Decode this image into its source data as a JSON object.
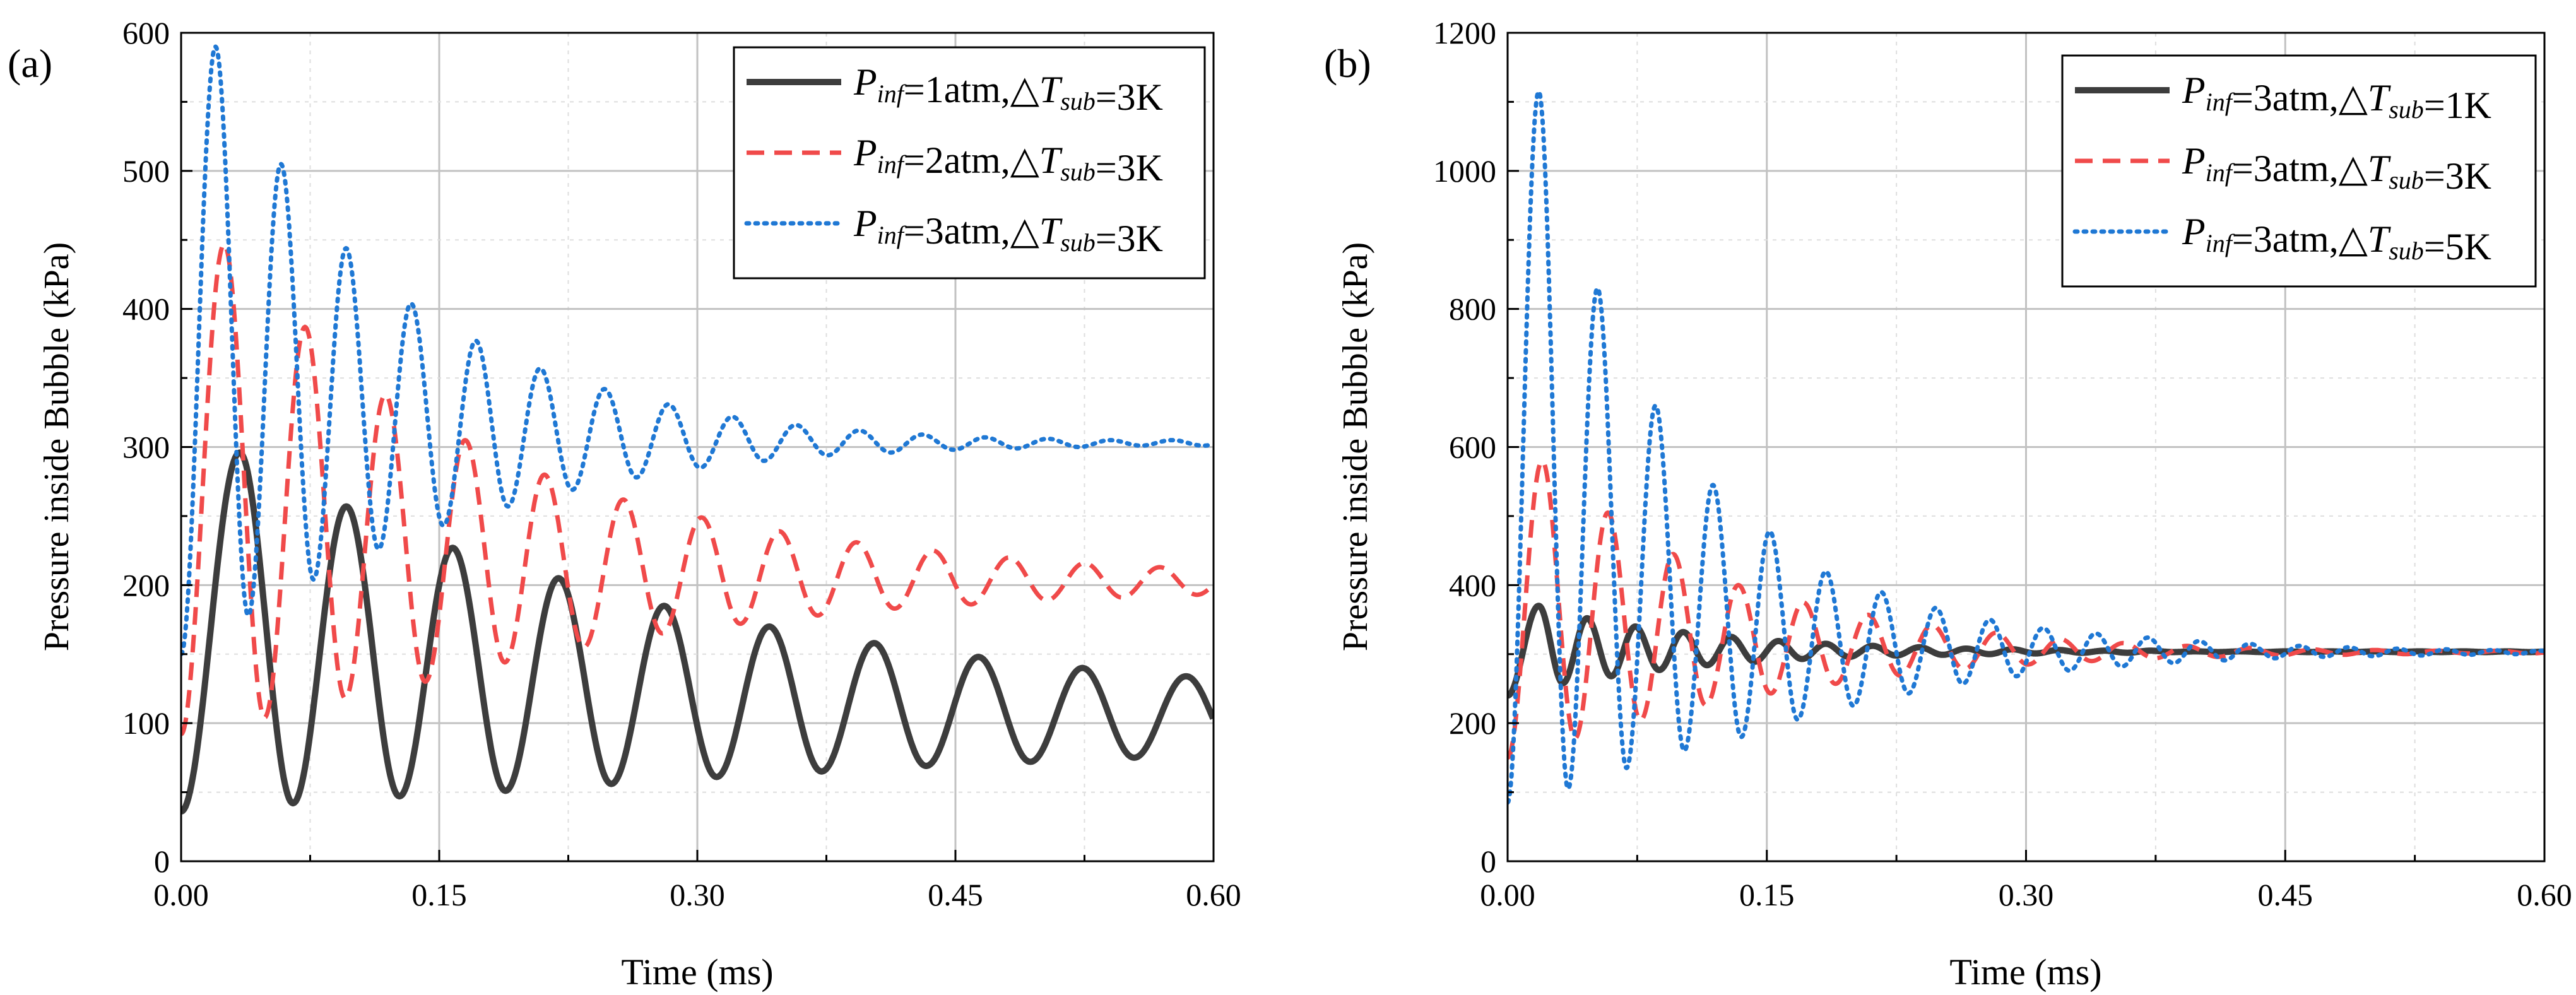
{
  "chart_data": [
    {
      "panel_label": "(a)",
      "type": "line",
      "xlabel": "Time (ms)",
      "ylabel": "Pressure inside Bubble (kPa)",
      "xlim": [
        0,
        0.6
      ],
      "ylim": [
        0,
        600
      ],
      "x_ticks": [
        "0.00",
        "0.15",
        "0.30",
        "0.45",
        "0.60"
      ],
      "y_ticks": [
        "0",
        "100",
        "200",
        "300",
        "400",
        "500",
        "600"
      ],
      "grid": true,
      "legend_position": "top-right",
      "series": [
        {
          "name": "P_inf=1atm, ΔT_sub=3K",
          "legend": {
            "p": "P",
            "psub": "inf",
            "mid": "=1atm,",
            "delta": "△",
            "t": "T",
            "tsub": "sub",
            "end": "=3K"
          },
          "style": "solid",
          "color": "#3d3d3d",
          "model": {
            "start": 36,
            "first_peak_t": 0.034,
            "peaks": [
              296,
              257,
              227,
              205,
              185,
              170,
              158,
              148,
              140,
              134
            ],
            "troughs": [
              42,
              47,
              51,
              56,
              61,
              65,
              69,
              72,
              75,
              77
            ],
            "period_start": 0.062,
            "period_end": 0.06
          }
        },
        {
          "name": "P_inf=2atm, ΔT_sub=3K",
          "legend": {
            "p": "P",
            "psub": "inf",
            "mid": "=2atm,",
            "delta": "△",
            "t": "T",
            "tsub": "sub",
            "end": "=3K"
          },
          "style": "dashed",
          "color": "#f04a4a",
          "model": {
            "start": 92,
            "first_peak_t": 0.025,
            "peaks": [
              447,
              387,
              338,
              305,
              280,
              262,
              249,
              239,
              231,
              225,
              220,
              216,
              213,
              211
            ],
            "troughs": [
              104,
              118,
              130,
              144,
              155,
              165,
              172,
              178,
              183,
              186,
              189,
              191,
              193,
              195
            ],
            "period_start": 0.047,
            "period_end": 0.043
          }
        },
        {
          "name": "P_inf=3atm, ΔT_sub=3K",
          "legend": {
            "p": "P",
            "psub": "inf",
            "mid": "=3atm,",
            "delta": "△",
            "t": "T",
            "tsub": "sub",
            "end": "=3K"
          },
          "style": "dotted",
          "color": "#1f78d4",
          "model": {
            "start": 150,
            "first_peak_t": 0.02,
            "peaks": [
              590,
              505,
              444,
              404,
              377,
              357,
              342,
              331,
              322,
              316,
              312,
              309,
              307,
              306,
              305,
              305
            ],
            "troughs": [
              178,
              204,
              226,
              243,
              257,
              269,
              278,
              285,
              290,
              294,
              296,
              298,
              299,
              300,
              301,
              301
            ],
            "period_start": 0.038,
            "period_end": 0.036
          }
        }
      ]
    },
    {
      "panel_label": "(b)",
      "type": "line",
      "xlabel": "Time (ms)",
      "ylabel": "Pressure inside Bubble (kPa)",
      "xlim": [
        0,
        0.6
      ],
      "ylim": [
        0,
        1200
      ],
      "x_ticks": [
        "0.00",
        "0.15",
        "0.30",
        "0.45",
        "0.60"
      ],
      "y_ticks": [
        "0",
        "200",
        "400",
        "600",
        "800",
        "1000",
        "1200"
      ],
      "grid": true,
      "legend_position": "top-right",
      "series": [
        {
          "name": "P_inf=3atm, ΔT_sub=1K",
          "legend": {
            "p": "P",
            "psub": "inf",
            "mid": "=3atm,",
            "delta": "△",
            "t": "T",
            "tsub": "sub",
            "end": "=1K"
          },
          "style": "solid",
          "color": "#3d3d3d",
          "model": {
            "start": 240,
            "first_peak_t": 0.018,
            "peaks": [
              370,
              352,
              340,
              332,
              325,
              319,
              315,
              312,
              310,
              308,
              307,
              306,
              305,
              305,
              304,
              304,
              304,
              304,
              304,
              304,
              304,
              304,
              304,
              304
            ],
            "troughs": [
              258,
              268,
              277,
              284,
              289,
              293,
              296,
              298,
              299,
              300,
              301,
              302,
              302,
              303,
              303,
              303,
              303,
              303,
              303,
              303,
              303,
              303,
              303,
              303
            ],
            "period_start": 0.028,
            "period_end": 0.025
          }
        },
        {
          "name": "P_inf=3atm, ΔT_sub=3K",
          "legend": {
            "p": "P",
            "psub": "inf",
            "mid": "=3atm,",
            "delta": "△",
            "t": "T",
            "tsub": "sub",
            "end": "=3K"
          },
          "style": "dashed",
          "color": "#f04a4a",
          "model": {
            "start": 150,
            "first_peak_t": 0.02,
            "peaks": [
              580,
              505,
              445,
              400,
              375,
              357,
              342,
              331,
              322,
              316,
              312,
              309,
              307,
              306,
              305,
              305,
              304,
              304,
              304,
              304
            ],
            "troughs": [
              178,
              204,
              226,
              243,
              257,
              269,
              278,
              285,
              290,
              294,
              296,
              298,
              299,
              300,
              301,
              301,
              302,
              302,
              302,
              302
            ],
            "period_start": 0.038,
            "period_end": 0.035
          }
        },
        {
          "name": "P_inf=3atm, ΔT_sub=5K",
          "legend": {
            "p": "P",
            "psub": "inf",
            "mid": "=3atm,",
            "delta": "△",
            "t": "T",
            "tsub": "sub",
            "end": "=5K"
          },
          "style": "dotted",
          "color": "#1f78d4",
          "model": {
            "start": 85,
            "first_peak_t": 0.018,
            "peaks": [
              1115,
              830,
              660,
              545,
              478,
              420,
              390,
              367,
              350,
              338,
              330,
              324,
              319,
              315,
              312,
              310,
              308,
              307,
              306,
              305,
              305,
              304,
              304,
              304
            ],
            "troughs": [
              105,
              135,
              160,
              180,
              205,
              225,
              243,
              257,
              268,
              276,
              282,
              287,
              291,
              294,
              296,
              297,
              298,
              299,
              300,
              300,
              301,
              301,
              301,
              301
            ],
            "period_start": 0.034,
            "period_end": 0.025
          }
        }
      ]
    }
  ]
}
